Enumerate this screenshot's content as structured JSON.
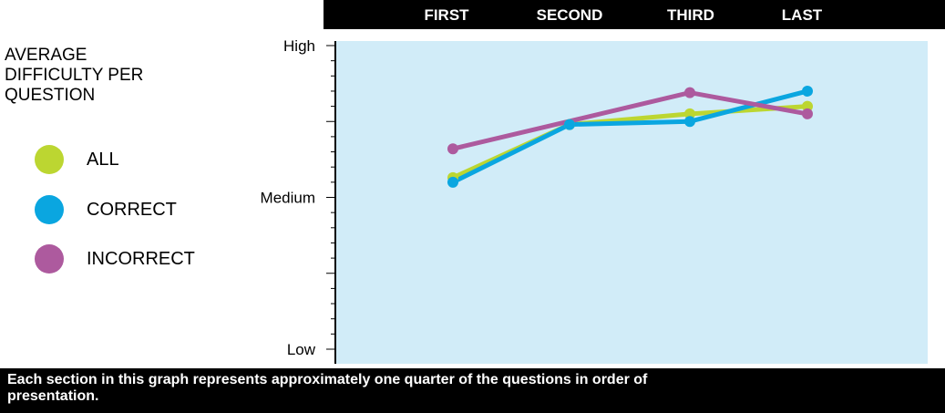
{
  "legend": {
    "title": "AVERAGE\nDIFFICULTY PER\nQUESTION",
    "items": [
      {
        "label": "ALL",
        "color": "#bcd631"
      },
      {
        "label": "CORRECT",
        "color": "#0aa6e0"
      },
      {
        "label": "INCORRECT",
        "color": "#ad5a9e"
      }
    ]
  },
  "caption": "Each section in this graph represents approximately one quarter of the questions in order of presentation.",
  "chart_data": {
    "type": "line",
    "categories": [
      "FIRST",
      "SECOND",
      "THIRD",
      "LAST"
    ],
    "y_tick_labels": [
      "Low",
      "Medium",
      "High"
    ],
    "ylim": [
      0,
      2
    ],
    "series": [
      {
        "name": "ALL",
        "color": "#bcd631",
        "values": [
          1.13,
          1.48,
          1.55,
          1.6
        ]
      },
      {
        "name": "CORRECT",
        "color": "#0aa6e0",
        "values": [
          1.1,
          1.48,
          1.5,
          1.7
        ]
      },
      {
        "name": "INCORRECT",
        "color": "#ad5a9e",
        "values": [
          1.32,
          null,
          1.69,
          1.55
        ]
      }
    ],
    "background_color": "#d1ecf8",
    "header_color": "#000000",
    "grid": false
  }
}
